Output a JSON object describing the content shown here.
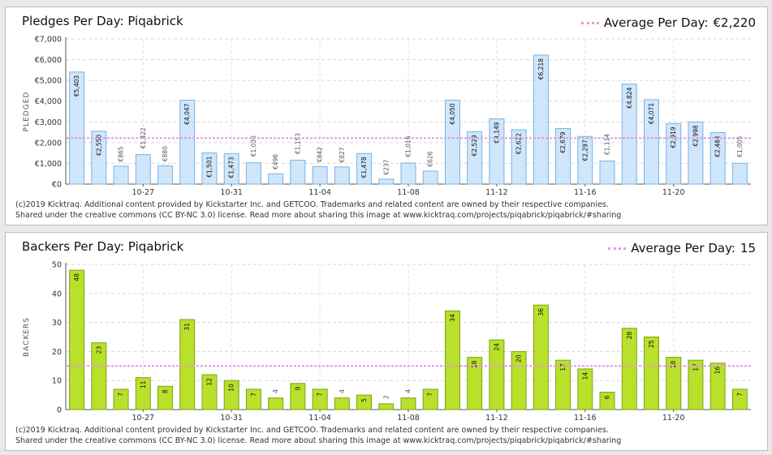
{
  "credit_line1": "(c)2019 Kicktraq. Additional content provided by Kickstarter Inc. and GETCOO. Trademarks and related content are owned by their respective companies.",
  "credit_line2": "Shared under the creative commons (CC BY-NC 3.0) license. Read more about sharing this image at www.kicktraq.com/projects/piqabrick/piqabrick/#sharing",
  "chart_data": [
    {
      "type": "bar",
      "title": "Pledges Per Day: Piqabrick",
      "ylabel": "PLEDGED",
      "average_label": "Average Per Day:",
      "average_value": "€2,220",
      "average": 2220,
      "ylim": [
        0,
        7000
      ],
      "ytick_values": [
        0,
        1000,
        2000,
        3000,
        4000,
        5000,
        6000,
        7000
      ],
      "ytick_labels": [
        "€0",
        "€1,000",
        "€2,000",
        "€3,000",
        "€4,000",
        "€5,000",
        "€6,000",
        "€7,000"
      ],
      "xtick_labels": [
        {
          "label": "10-27",
          "index": 3
        },
        {
          "label": "10-31",
          "index": 7
        },
        {
          "label": "11-04",
          "index": 11
        },
        {
          "label": "11-08",
          "index": 15
        },
        {
          "label": "11-12",
          "index": 19
        },
        {
          "label": "11-16",
          "index": 23
        },
        {
          "label": "11-20",
          "index": 27
        }
      ],
      "values": [
        5403,
        2550,
        865,
        1422,
        880,
        4047,
        1501,
        1473,
        1030,
        496,
        1153,
        842,
        827,
        1478,
        237,
        1016,
        626,
        4050,
        2529,
        3149,
        2622,
        6218,
        2679,
        2297,
        1114,
        4824,
        4071,
        2919,
        2998,
        2484,
        1005
      ],
      "labels": [
        "€5,403",
        "€2,550",
        "€865",
        "€1,422",
        "€880",
        "€4,047",
        "€1,501",
        "€1,473",
        "€1,030",
        "€496",
        "€1,153",
        "€842",
        "€827",
        "€1,478",
        "€237",
        "€1,016",
        "€626",
        "€4,050",
        "€2,529",
        "€3,149",
        "€2,622",
        "€6,218",
        "€2,679",
        "€2,297",
        "€1,114",
        "€4,824",
        "€4,071",
        "€2,919",
        "€2,998",
        "€2,484",
        "€1,005"
      ],
      "colors": {
        "fill": "#cfe6fb",
        "stroke": "#7ab3e4",
        "average": "#e29be0"
      },
      "grid": true
    },
    {
      "type": "bar",
      "title": "Backers Per Day: Piqabrick",
      "ylabel": "BACKERS",
      "average_label": "Average Per Day:",
      "average_value": "15",
      "average": 15,
      "ylim": [
        0,
        50
      ],
      "ytick_values": [
        0,
        10,
        20,
        30,
        40,
        50
      ],
      "ytick_labels": [
        "0",
        "10",
        "20",
        "30",
        "40",
        "50"
      ],
      "xtick_labels": [
        {
          "label": "10-27",
          "index": 3
        },
        {
          "label": "10-31",
          "index": 7
        },
        {
          "label": "11-04",
          "index": 11
        },
        {
          "label": "11-08",
          "index": 15
        },
        {
          "label": "11-12",
          "index": 19
        },
        {
          "label": "11-16",
          "index": 23
        },
        {
          "label": "11-20",
          "index": 27
        }
      ],
      "values": [
        48,
        23,
        7,
        11,
        8,
        31,
        12,
        10,
        7,
        4,
        9,
        7,
        4,
        5,
        2,
        4,
        7,
        34,
        18,
        24,
        20,
        36,
        17,
        14,
        6,
        28,
        25,
        18,
        17,
        16,
        7
      ],
      "labels": [
        "48",
        "23",
        "7",
        "11",
        "8",
        "31",
        "12",
        "10",
        "7",
        "4",
        "9",
        "7",
        "4",
        "5",
        "2",
        "4",
        "7",
        "34",
        "18",
        "24",
        "20",
        "36",
        "17",
        "14",
        "6",
        "28",
        "25",
        "18",
        "17",
        "16",
        "7"
      ],
      "colors": {
        "fill": "#b9e02a",
        "stroke": "#7ea316",
        "average": "#e29be0"
      },
      "grid": true
    }
  ]
}
